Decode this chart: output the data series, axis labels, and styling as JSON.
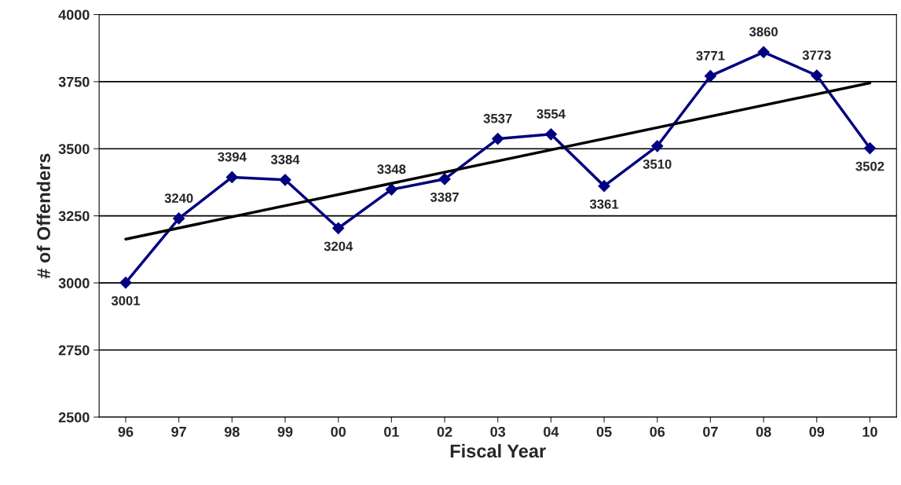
{
  "chart_data": {
    "type": "line",
    "xlabel": "Fiscal Year",
    "ylabel": "# of Offenders",
    "categories": [
      "96",
      "97",
      "98",
      "99",
      "00",
      "01",
      "02",
      "03",
      "04",
      "05",
      "06",
      "07",
      "08",
      "09",
      "10"
    ],
    "series": [
      {
        "color": "#000080",
        "marker": "diamond",
        "values": [
          3001,
          3240,
          3394,
          3384,
          3204,
          3348,
          3387,
          3537,
          3554,
          3361,
          3510,
          3771,
          3860,
          3773,
          3502
        ],
        "value_labels": [
          "3001",
          "3240",
          "3394",
          "3384",
          "3204",
          "3348",
          "3387",
          "3537",
          "3554",
          "3361",
          "3510",
          "3771",
          "3860",
          "3773",
          "3502"
        ]
      },
      {
        "type": "line",
        "color": "#000000",
        "marker": "none",
        "x": [
          "96",
          "10"
        ],
        "values": [
          3163,
          3745
        ]
      }
    ],
    "ylim": [
      2500,
      4000
    ],
    "yticks": [
      2500,
      2750,
      3000,
      3250,
      3500,
      3750,
      4000
    ],
    "grid": "y",
    "legend": false
  }
}
